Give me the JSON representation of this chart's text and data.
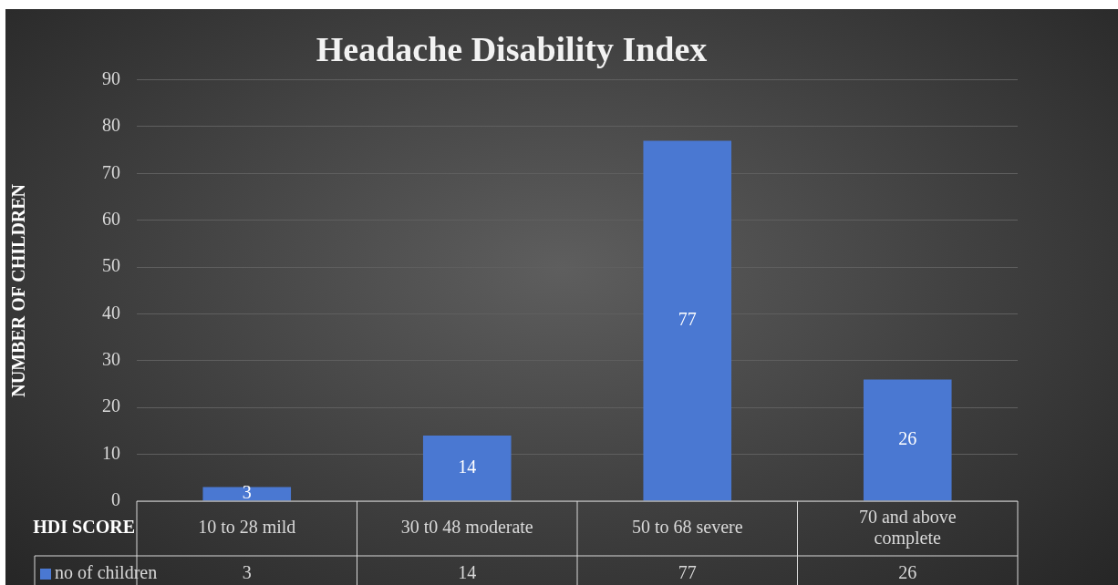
{
  "chart_data": {
    "type": "bar",
    "title": "Headache Disability Index",
    "xlabel": "HDI SCORE",
    "ylabel": "NUMBER OF CHILDREN",
    "categories": [
      "10 to 28 mild",
      "30 t0 48 moderate",
      "50 to 68 severe",
      "70 and above complete"
    ],
    "series": [
      {
        "name": "no of children",
        "color": "#4a78d2",
        "values": [
          3,
          14,
          77,
          26
        ]
      }
    ],
    "ylim": [
      0,
      90
    ],
    "yticks": [
      0,
      10,
      20,
      30,
      40,
      50,
      60,
      70,
      80,
      90
    ],
    "grid": "y",
    "data_labels": true,
    "annotations": [
      "3",
      "14",
      "77",
      "26"
    ]
  }
}
